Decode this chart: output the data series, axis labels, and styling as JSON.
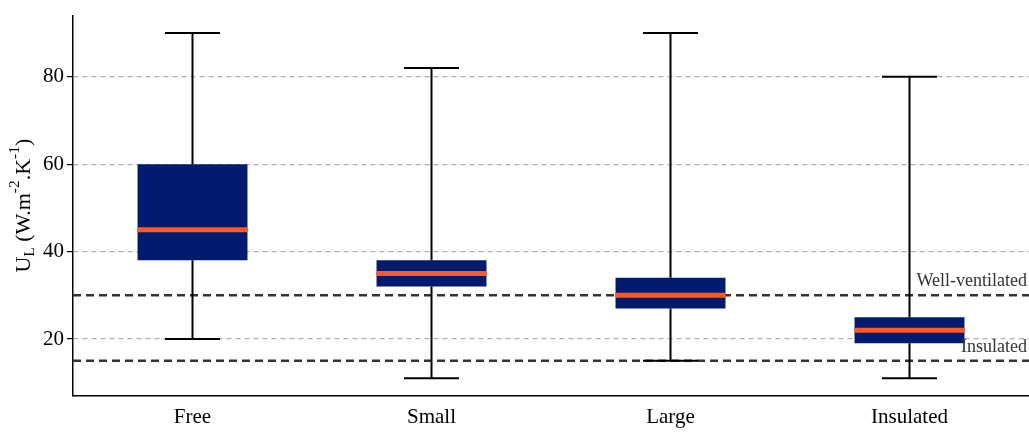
{
  "chart_data": {
    "type": "box",
    "ylabel": "U$_{L}$ (W.m$^{-2}$.K$^{-1}$)",
    "categories": [
      "Free",
      "Small",
      "Large",
      "Insulated"
    ],
    "series": [
      {
        "color": "#001a6e",
        "boxes": [
          {
            "low": 20,
            "q1": 38,
            "median": 45,
            "q3": 60,
            "high": 90
          },
          {
            "low": 11,
            "q1": 32,
            "median": 35,
            "q3": 38,
            "high": 82
          },
          {
            "low": 15,
            "q1": 27,
            "median": 30,
            "q3": 34,
            "high": 90
          },
          {
            "low": 11,
            "q1": 19,
            "median": 22,
            "q3": 25,
            "high": 80
          }
        ]
      }
    ],
    "ylim": [
      7,
      94
    ],
    "yticks": [
      20,
      40,
      60,
      80
    ],
    "grid": "y",
    "legend": false,
    "ref_lines": [
      {
        "axis": "y",
        "value": 30,
        "label": "Well-ventilated",
        "color": "#333333",
        "line_style": "dashed"
      },
      {
        "axis": "y",
        "value": 15,
        "label": "Insulated",
        "color": "#333333",
        "line_style": "dashed"
      }
    ]
  }
}
